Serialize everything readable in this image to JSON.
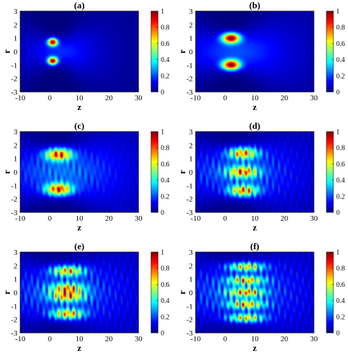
{
  "figure": {
    "colormap": "jet",
    "colormap_stops": [
      "#00007f",
      "#0000ff",
      "#007fff",
      "#00ffff",
      "#7fff7f",
      "#ffff00",
      "#ff7f00",
      "#ff0000",
      "#7f0000"
    ]
  },
  "chart_data": [
    {
      "type": "heatmap",
      "title": "(a)",
      "xlabel": "z",
      "ylabel": "r",
      "xlim": [
        -10,
        30
      ],
      "ylim": [
        -3,
        3
      ],
      "xticks": [
        -10,
        0,
        10,
        20,
        30
      ],
      "yticks": [
        3,
        2,
        1,
        0,
        -1,
        -2,
        -3
      ],
      "colorbar": {
        "range": [
          0,
          1
        ],
        "ticks": [
          1,
          0.8,
          0.6,
          0.4,
          0.2,
          0
        ]
      },
      "features": {
        "lobes": [
          {
            "z": 1,
            "r": 0.7,
            "peak": 1.0
          },
          {
            "z": 1,
            "r": -0.7,
            "peak": 1.0
          }
        ],
        "lobe_width_z": 1.6,
        "lobe_width_r": 0.28,
        "beam_waist": 0.85,
        "rayleigh_range": 5,
        "background": 0.18,
        "interference": 0
      }
    },
    {
      "type": "heatmap",
      "title": "(b)",
      "xlabel": "z",
      "ylabel": "r",
      "xlim": [
        -10,
        30
      ],
      "ylim": [
        -3,
        3
      ],
      "xticks": [
        -10,
        0,
        10,
        20,
        30
      ],
      "yticks": [
        3,
        2,
        1,
        0,
        -1,
        -2,
        -3
      ],
      "colorbar": {
        "range": [
          0,
          1
        ],
        "ticks": [
          1,
          0.8,
          0.6,
          0.4,
          0.2,
          0
        ]
      },
      "features": {
        "lobes": [
          {
            "z": 2,
            "r": 1.0,
            "peak": 1.0
          },
          {
            "z": 2,
            "r": -1.0,
            "peak": 1.0
          }
        ],
        "lobe_width_z": 3.0,
        "lobe_width_r": 0.38,
        "beam_waist": 1.05,
        "rayleigh_range": 7,
        "background": 0.22,
        "interference": 0
      }
    },
    {
      "type": "heatmap",
      "title": "(c)",
      "xlabel": "z",
      "ylabel": "r",
      "xlim": [
        -10,
        30
      ],
      "ylim": [
        -3,
        3
      ],
      "xticks": [
        -10,
        0,
        10,
        20,
        30
      ],
      "yticks": [
        3,
        2,
        1,
        0,
        -1,
        -2,
        -3
      ],
      "colorbar": {
        "range": [
          0,
          1
        ],
        "ticks": [
          1,
          0.8,
          0.6,
          0.4,
          0.2,
          0
        ]
      },
      "features": {
        "lobes": [
          {
            "z": 3,
            "r": 1.3,
            "peak": 1.0
          },
          {
            "z": 3,
            "r": -1.3,
            "peak": 1.0
          }
        ],
        "lobe_width_z": 4.5,
        "lobe_width_r": 0.45,
        "beam_waist": 1.35,
        "rayleigh_range": 9,
        "background": 0.3,
        "interference": 0.35
      }
    },
    {
      "type": "heatmap",
      "title": "(d)",
      "xlabel": "z",
      "ylabel": "r",
      "xlim": [
        -10,
        30
      ],
      "ylim": [
        -3,
        3
      ],
      "xticks": [
        -10,
        0,
        10,
        20,
        30
      ],
      "yticks": [
        3,
        2,
        1,
        0,
        -1,
        -2,
        -3
      ],
      "colorbar": {
        "range": [
          0,
          1
        ],
        "ticks": [
          1,
          0.8,
          0.6,
          0.4,
          0.2,
          0
        ]
      },
      "features": {
        "lobes": [
          {
            "z": 6,
            "r": 1.4,
            "peak": 0.95
          },
          {
            "z": 6,
            "r": 0,
            "peak": 0.85
          },
          {
            "z": 6,
            "r": -1.4,
            "peak": 0.95
          }
        ],
        "lobe_width_z": 5.0,
        "lobe_width_r": 0.42,
        "beam_waist": 1.5,
        "rayleigh_range": 10,
        "background": 0.3,
        "interference": 0.55
      }
    },
    {
      "type": "heatmap",
      "title": "(e)",
      "xlabel": "z",
      "ylabel": "r",
      "xlim": [
        -10,
        30
      ],
      "ylim": [
        -3,
        3
      ],
      "xticks": [
        -10,
        0,
        10,
        20,
        30
      ],
      "yticks": [
        3,
        2,
        1,
        0,
        -1,
        -2,
        -3
      ],
      "colorbar": {
        "range": [
          0,
          1
        ],
        "ticks": [
          1,
          0.8,
          0.6,
          0.4,
          0.2,
          0
        ]
      },
      "features": {
        "lobes": [
          {
            "z": 6,
            "r": 1.6,
            "peak": 0.95
          },
          {
            "z": 6,
            "r": 0.3,
            "peak": 0.8
          },
          {
            "z": 6,
            "r": -0.3,
            "peak": 0.8
          },
          {
            "z": 6,
            "r": -1.6,
            "peak": 0.95
          }
        ],
        "lobe_width_z": 5.5,
        "lobe_width_r": 0.38,
        "beam_waist": 1.7,
        "rayleigh_range": 11,
        "background": 0.32,
        "interference": 0.6
      }
    },
    {
      "type": "heatmap",
      "title": "(f)",
      "xlabel": "z",
      "ylabel": "r",
      "xlim": [
        -10,
        30
      ],
      "ylim": [
        -3,
        3
      ],
      "xticks": [
        -10,
        0,
        10,
        20,
        30
      ],
      "yticks": [
        3,
        2,
        1,
        0,
        -1,
        -2,
        -3
      ],
      "colorbar": {
        "range": [
          0,
          1
        ],
        "ticks": [
          1,
          0.8,
          0.6,
          0.4,
          0.2,
          0
        ]
      },
      "features": {
        "lobes": [
          {
            "z": 7,
            "r": 1.9,
            "peak": 0.9
          },
          {
            "z": 7,
            "r": 0.9,
            "peak": 0.85
          },
          {
            "z": 7,
            "r": 0,
            "peak": 0.85
          },
          {
            "z": 7,
            "r": -0.9,
            "peak": 0.85
          },
          {
            "z": 7,
            "r": -1.9,
            "peak": 0.9
          }
        ],
        "lobe_width_z": 6.0,
        "lobe_width_r": 0.32,
        "beam_waist": 1.9,
        "rayleigh_range": 12,
        "background": 0.32,
        "interference": 0.65
      }
    }
  ]
}
